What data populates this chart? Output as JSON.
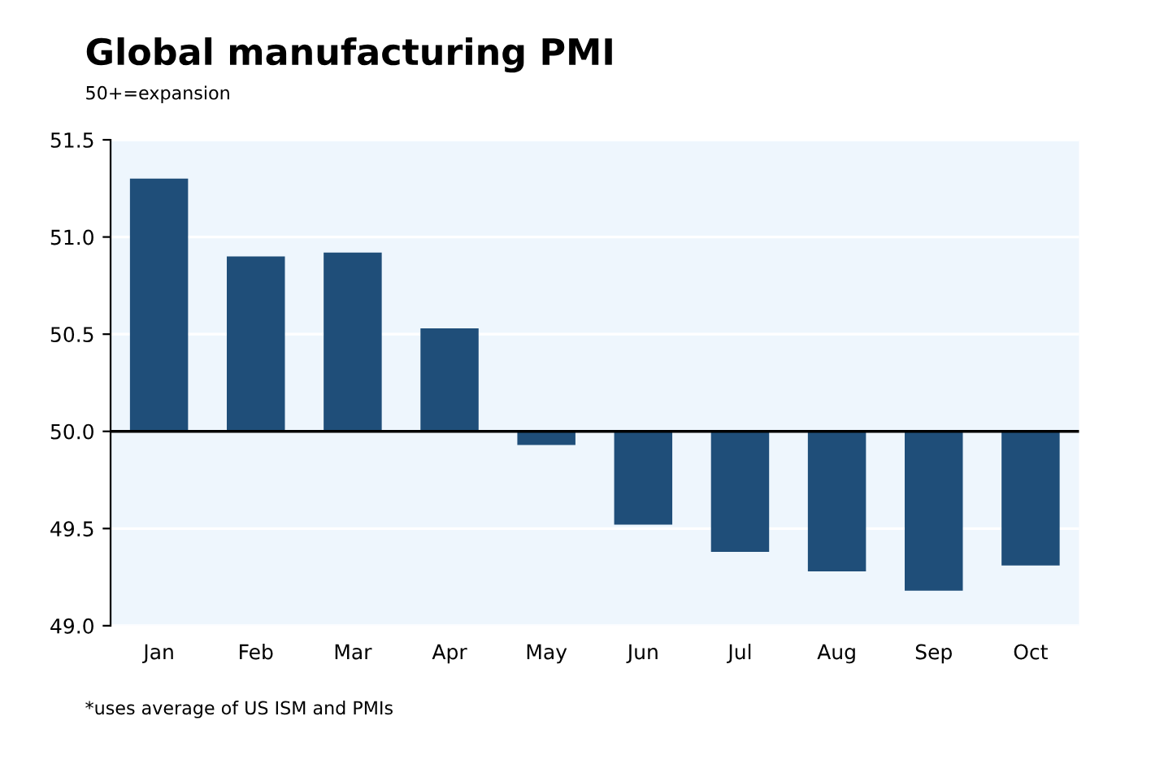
{
  "chart_data": {
    "type": "bar",
    "title": "Global manufacturing PMI",
    "subtitle": "50+=expansion",
    "categories": [
      "Jan",
      "Feb",
      "Mar",
      "Apr",
      "May",
      "Jun",
      "Jul",
      "Aug",
      "Sep",
      "Oct"
    ],
    "base": [
      50,
      50,
      50,
      50,
      50,
      50,
      50,
      50,
      50,
      50
    ],
    "values": [
      1.3,
      0.9,
      0.92,
      0.53,
      -0.07,
      -0.48,
      -0.62,
      -0.72,
      -0.82,
      -0.69
    ],
    "color": "#1f4e79",
    "ylim": [
      49.0,
      51.5
    ],
    "yticks": [
      {
        "value": 49.0,
        "label": "49.0"
      },
      {
        "value": 49.5,
        "label": "49.5"
      },
      {
        "value": 50.0,
        "label": "50.0"
      },
      {
        "value": 50.5,
        "label": "50.5"
      },
      {
        "value": 51.0,
        "label": "51.0"
      },
      {
        "value": 51.5,
        "label": "51.5"
      }
    ],
    "grid": "y",
    "ref_lines": [
      {
        "axis": "y",
        "value": 50,
        "color": "#000000"
      }
    ],
    "annotations": [
      "*uses average of US ISM and PMIs"
    ]
  }
}
